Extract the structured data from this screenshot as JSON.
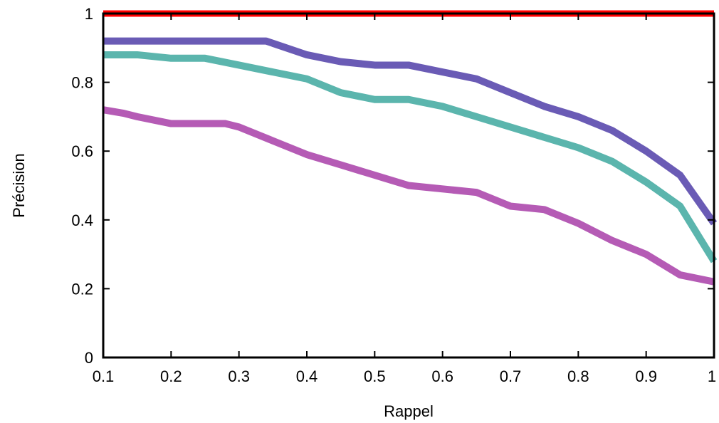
{
  "chart_data": {
    "type": "line",
    "title": "",
    "xlabel": "Rappel",
    "ylabel": "Précision",
    "xlim": [
      0.1,
      1
    ],
    "ylim": [
      0,
      1
    ],
    "x_ticks": [
      "0.1",
      "0.2",
      "0.3",
      "0.4",
      "0.5",
      "0.6",
      "0.7",
      "0.8",
      "0.9",
      "1"
    ],
    "y_ticks": [
      "0",
      "0.2",
      "0.4",
      "0.6",
      "0.8",
      "1"
    ],
    "grid": false,
    "legend": "none",
    "series": [
      {
        "color": "#ff0000",
        "x": [
          0.1,
          1.0
        ],
        "y": [
          1.0,
          1.0
        ]
      },
      {
        "color": "#6a5bb5",
        "x": [
          0.1,
          0.15,
          0.2,
          0.25,
          0.3,
          0.34,
          0.4,
          0.45,
          0.5,
          0.55,
          0.6,
          0.65,
          0.7,
          0.75,
          0.8,
          0.85,
          0.9,
          0.95,
          1.0
        ],
        "y": [
          0.92,
          0.92,
          0.92,
          0.92,
          0.92,
          0.92,
          0.88,
          0.86,
          0.85,
          0.85,
          0.83,
          0.81,
          0.77,
          0.73,
          0.7,
          0.66,
          0.6,
          0.53,
          0.39
        ]
      },
      {
        "color": "#5bb5ad",
        "x": [
          0.1,
          0.15,
          0.2,
          0.25,
          0.3,
          0.35,
          0.4,
          0.45,
          0.5,
          0.55,
          0.6,
          0.65,
          0.7,
          0.75,
          0.8,
          0.85,
          0.9,
          0.95,
          1.0
        ],
        "y": [
          0.88,
          0.88,
          0.87,
          0.87,
          0.85,
          0.83,
          0.81,
          0.77,
          0.75,
          0.75,
          0.73,
          0.7,
          0.67,
          0.64,
          0.61,
          0.57,
          0.51,
          0.44,
          0.28
        ]
      },
      {
        "color": "#b55bb5",
        "x": [
          0.1,
          0.13,
          0.15,
          0.2,
          0.25,
          0.28,
          0.3,
          0.35,
          0.4,
          0.45,
          0.5,
          0.55,
          0.6,
          0.65,
          0.7,
          0.75,
          0.8,
          0.85,
          0.9,
          0.95,
          1.0
        ],
        "y": [
          0.72,
          0.71,
          0.7,
          0.68,
          0.68,
          0.68,
          0.67,
          0.63,
          0.59,
          0.56,
          0.53,
          0.5,
          0.49,
          0.48,
          0.44,
          0.43,
          0.39,
          0.34,
          0.3,
          0.24,
          0.22
        ]
      }
    ]
  }
}
